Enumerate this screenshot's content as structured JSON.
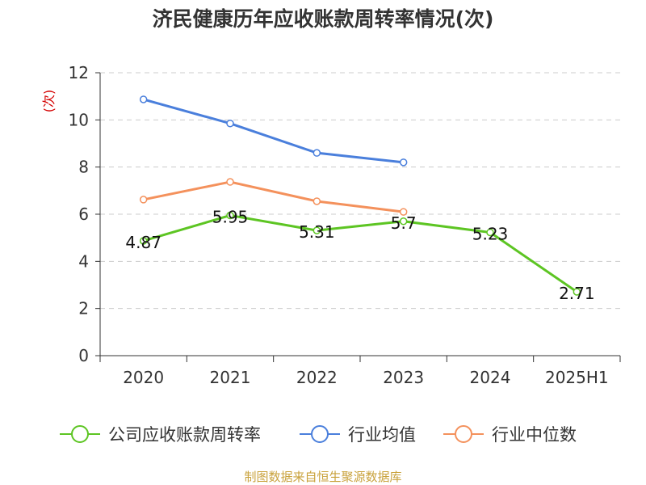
{
  "chart_data": {
    "type": "line",
    "title": "济民健康历年应收账款周转率情况(次)",
    "ylabel": "(次)",
    "xlabel": "",
    "categories": [
      "2020",
      "2021",
      "2022",
      "2023",
      "2024",
      "2025H1"
    ],
    "ylim": [
      0,
      12
    ],
    "yticks": [
      0,
      2,
      4,
      6,
      8,
      10,
      12
    ],
    "grid": true,
    "legend_position": "bottom",
    "series": [
      {
        "name": "公司应收账款周转率",
        "color": "#5dc523",
        "values": [
          4.87,
          5.95,
          5.31,
          5.7,
          5.23,
          2.71
        ],
        "labels": [
          "4.87",
          "5.95",
          "5.31",
          "5.7",
          "5.23",
          "2.71"
        ]
      },
      {
        "name": "行业均值",
        "color": "#4a7fdc",
        "values": [
          10.87,
          9.85,
          8.6,
          8.2,
          null,
          null
        ]
      },
      {
        "name": "行业中位数",
        "color": "#f4915c",
        "values": [
          6.62,
          7.37,
          6.55,
          6.1,
          null,
          null
        ]
      }
    ]
  },
  "source": "制图数据来自恒生聚源数据库"
}
